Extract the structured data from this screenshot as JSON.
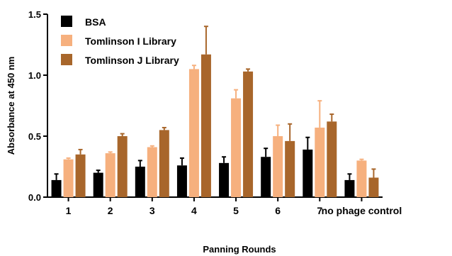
{
  "chart_data": {
    "type": "bar",
    "title": "",
    "xlabel": "Panning Rounds",
    "ylabel": "Absorbance at 450 nm",
    "ylim": [
      0,
      1.5
    ],
    "yticks": [
      "0.0",
      "0.5",
      "1.0",
      "1.5"
    ],
    "categories": [
      "1",
      "2",
      "3",
      "4",
      "5",
      "6",
      "7",
      "no phage control"
    ],
    "grid": false,
    "legend_position": "top-left",
    "series": [
      {
        "name": "BSA",
        "color": "#000000",
        "values": [
          0.14,
          0.2,
          0.25,
          0.26,
          0.28,
          0.33,
          0.39,
          0.14
        ],
        "errors": [
          0.05,
          0.02,
          0.05,
          0.06,
          0.05,
          0.07,
          0.1,
          0.05
        ]
      },
      {
        "name": "Tomlinson I Library",
        "color": "#F6B07E",
        "values": [
          0.31,
          0.36,
          0.41,
          1.05,
          0.81,
          0.5,
          0.57,
          0.3
        ],
        "errors": [
          0.01,
          0.01,
          0.01,
          0.03,
          0.07,
          0.09,
          0.22,
          0.01
        ]
      },
      {
        "name": "Tomlinson J Library",
        "color": "#A8662B",
        "values": [
          0.35,
          0.5,
          0.55,
          1.17,
          1.03,
          0.46,
          0.62,
          0.16
        ],
        "errors": [
          0.04,
          0.02,
          0.02,
          0.23,
          0.02,
          0.14,
          0.06,
          0.07
        ]
      }
    ]
  }
}
